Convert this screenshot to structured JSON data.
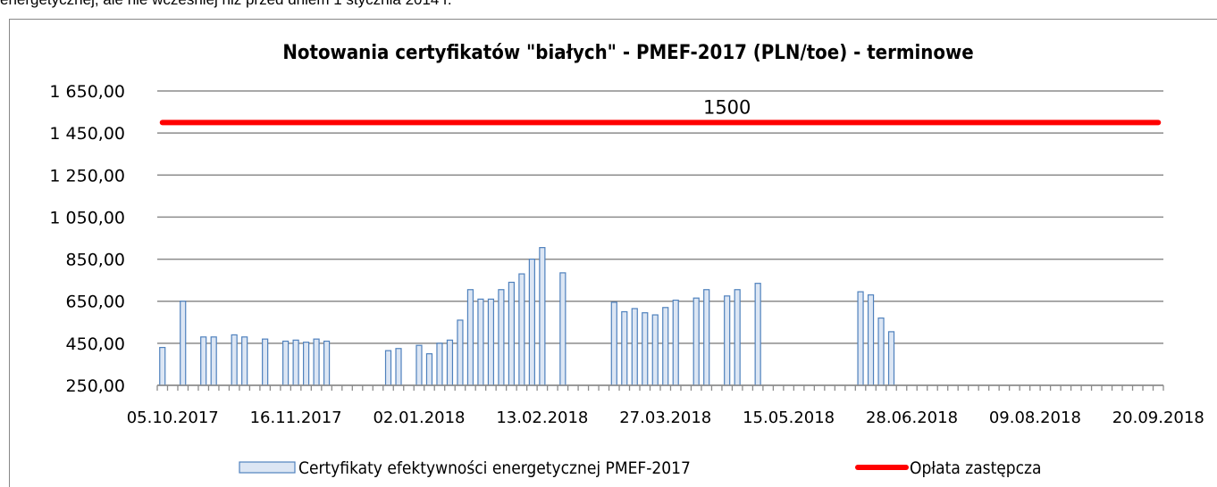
{
  "page_text": "energetycznej, ale nie wcześniej niż przed dniem 1 stycznia 2014 r.",
  "chart_data": {
    "type": "bar",
    "title": "Notowania certyfikatów \"białych\" - PMEF-2017 (PLN/toe) - terminowe",
    "categories": [
      null,
      "05.10.2017",
      null,
      null,
      null,
      null,
      null,
      null,
      null,
      null,
      null,
      null,
      null,
      "16.11.2017",
      null,
      null,
      null,
      null,
      null,
      null,
      null,
      null,
      null,
      null,
      null,
      "02.01.2018",
      null,
      null,
      null,
      null,
      null,
      null,
      null,
      null,
      null,
      null,
      null,
      "13.02.2018",
      null,
      null,
      null,
      null,
      null,
      null,
      null,
      null,
      null,
      null,
      null,
      "27.03.2018",
      null,
      null,
      null,
      null,
      null,
      null,
      null,
      null,
      null,
      null,
      null,
      "15.05.2018",
      null,
      null,
      null,
      null,
      null,
      null,
      null,
      null,
      null,
      null,
      null,
      "28.06.2018",
      null,
      null,
      null,
      null,
      null,
      null,
      null,
      null,
      null,
      null,
      null,
      "09.08.2018",
      null,
      null,
      null,
      null,
      null,
      null,
      null,
      null,
      null,
      null,
      null,
      "20.09.2018"
    ],
    "series": [
      {
        "name": "Certyfikaty efektywności energetycznej PMEF-2017",
        "type": "bar",
        "color": "#4f81bd",
        "fill": "#dce6f4",
        "values": [
          430,
          null,
          650,
          null,
          480,
          480,
          null,
          490,
          480,
          null,
          470,
          null,
          460,
          465,
          455,
          470,
          460,
          null,
          null,
          null,
          null,
          null,
          415,
          425,
          null,
          440,
          400,
          450,
          465,
          560,
          705,
          660,
          660,
          705,
          740,
          780,
          850,
          905,
          null,
          785,
          null,
          null,
          null,
          null,
          645,
          600,
          615,
          595,
          585,
          620,
          655,
          null,
          665,
          705,
          null,
          675,
          705,
          null,
          735,
          null,
          null,
          null,
          null,
          null,
          null,
          null,
          null,
          null,
          695,
          680,
          570,
          505,
          null,
          null,
          null,
          null,
          null,
          null,
          null,
          null,
          null,
          null,
          null,
          null,
          null,
          null,
          null,
          null,
          null,
          null,
          null,
          null,
          null,
          null,
          null,
          null,
          null,
          null
        ]
      },
      {
        "name": "Opłata zastępcza",
        "type": "line",
        "color": "#ff0000",
        "values": [
          1500,
          1500,
          1500,
          1500,
          1500,
          1500,
          1500,
          1500,
          1500,
          1500,
          1500,
          1500,
          1500,
          1500,
          1500,
          1500,
          1500,
          1500,
          1500,
          1500,
          1500,
          1500,
          1500,
          1500,
          1500,
          1500,
          1500,
          1500,
          1500,
          1500,
          1500,
          1500,
          1500,
          1500,
          1500,
          1500,
          1500,
          1500,
          1500,
          1500,
          1500,
          1500,
          1500,
          1500,
          1500,
          1500,
          1500,
          1500,
          1500,
          1500,
          1500,
          1500,
          1500,
          1500,
          1500,
          1500,
          1500,
          1500,
          1500,
          1500,
          1500,
          1500,
          1500,
          1500,
          1500,
          1500,
          1500,
          1500,
          1500,
          1500,
          1500,
          1500,
          1500,
          1500,
          1500,
          1500,
          1500,
          1500,
          1500,
          1500,
          1500,
          1500,
          1500,
          1500,
          1500,
          1500,
          1500,
          1500,
          1500,
          1500,
          1500,
          1500,
          1500,
          1500,
          1500,
          1500,
          1500,
          1500
        ],
        "value_labels": [
          null,
          null,
          null,
          null,
          null,
          null,
          null,
          null,
          null,
          null,
          null,
          null,
          null,
          null,
          null,
          null,
          null,
          null,
          null,
          null,
          null,
          null,
          null,
          null,
          null,
          null,
          null,
          null,
          null,
          null,
          null,
          null,
          null,
          null,
          null,
          null,
          null,
          null,
          null,
          null,
          null,
          null,
          null,
          null,
          null,
          null,
          null,
          null,
          null,
          null,
          null,
          null,
          null,
          null,
          null,
          "1500",
          null,
          null,
          null,
          null,
          null,
          null,
          null,
          null,
          null,
          null,
          null,
          null,
          null,
          null,
          null,
          null,
          null,
          null,
          null,
          null,
          null,
          null,
          null,
          null,
          null,
          null,
          null,
          null,
          null,
          null,
          null,
          null,
          null,
          null,
          null,
          null,
          null,
          null,
          null,
          null,
          null,
          null
        ]
      }
    ],
    "ylim": [
      250,
      1650
    ],
    "yticks": [
      {
        "value": 250,
        "label": "250,00"
      },
      {
        "value": 450,
        "label": "450,00"
      },
      {
        "value": 650,
        "label": "650,00"
      },
      {
        "value": 850,
        "label": "850,00"
      },
      {
        "value": 1050,
        "label": "1 050,00"
      },
      {
        "value": 1250,
        "label": "1 250,00"
      },
      {
        "value": 1450,
        "label": "1 450,00"
      },
      {
        "value": 1650,
        "label": "1 650,00"
      }
    ],
    "grid": true,
    "legend": "bottom"
  }
}
